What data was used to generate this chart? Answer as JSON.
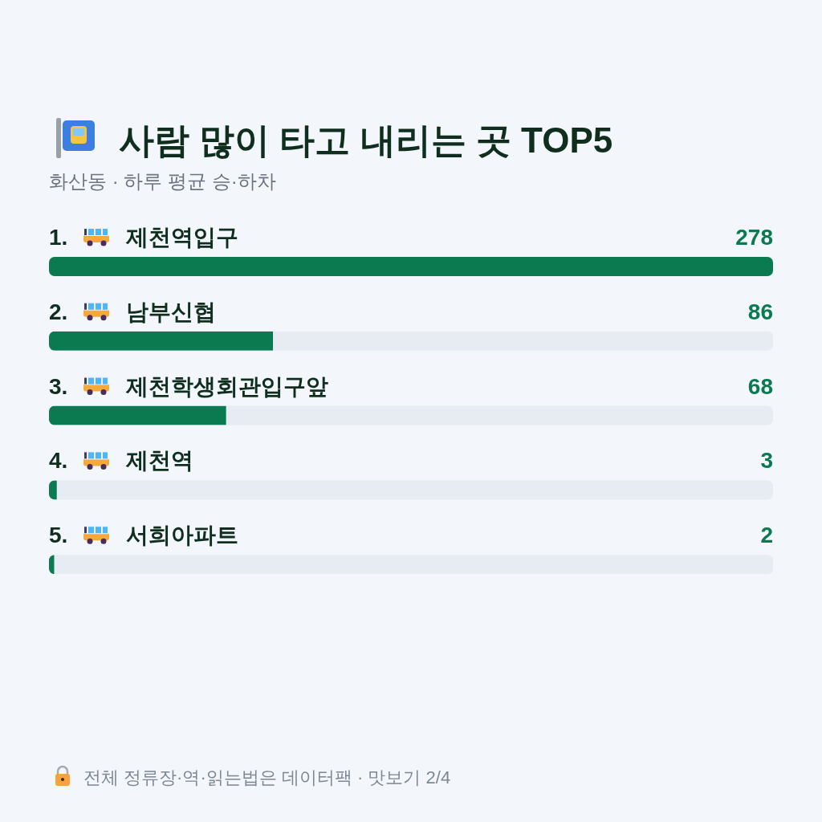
{
  "chart_data": {
    "type": "bar",
    "orientation": "horizontal",
    "title": "사람 많이 타고 내리는 곳 TOP5",
    "subtitle": "화산동 · 하루 평균 승·하차",
    "categories": [
      "1. 제천역입구",
      "2. 남부신협",
      "3. 제천학생회관입구앞",
      "4. 제천역",
      "5. 서희아파트"
    ],
    "values": [
      278,
      86,
      68,
      3,
      2
    ],
    "color": "#0b7a50",
    "data_labels": true,
    "annotations": [
      "전체 정류장·역·읽는법은 데이터팩 · 맛보기 2/4"
    ]
  }
}
